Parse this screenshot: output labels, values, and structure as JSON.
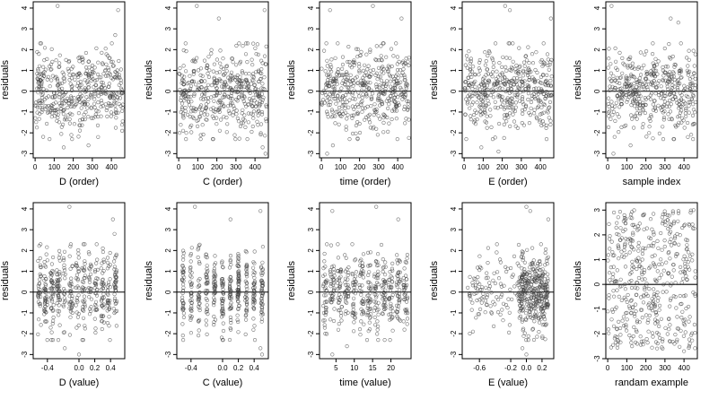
{
  "chart_data": [
    {
      "type": "scatter",
      "xlabel": "D (order)",
      "ylabel": "residuals",
      "xlim": [
        -10,
        470
      ],
      "ylim": [
        -3.2,
        4.3
      ],
      "xticks": [
        0,
        100,
        200,
        300,
        400
      ],
      "xtick_labels": [
        "0",
        "100",
        "200",
        "300",
        "400"
      ],
      "yticks": [
        -3,
        -2,
        -1,
        0,
        1,
        2,
        3,
        4
      ],
      "ytick_labels": [
        "-3",
        "-2",
        "-1",
        "0",
        "1",
        "2",
        "3",
        "4"
      ],
      "reference_line_y": 0,
      "x_distribution": "uniform",
      "x_range": [
        0,
        460
      ],
      "n_points": 450,
      "seed": 11,
      "highlights": [
        [
          118,
          4.1
        ],
        [
          435,
          3.9
        ],
        [
          420,
          2.7
        ],
        [
          150,
          -2.7
        ],
        [
          280,
          -2.6
        ],
        [
          190,
          -2.1
        ],
        [
          330,
          -2.2
        ]
      ]
    },
    {
      "type": "scatter",
      "xlabel": "C (order)",
      "ylabel": "residuals",
      "xlim": [
        -10,
        470
      ],
      "ylim": [
        -3.2,
        4.3
      ],
      "xticks": [
        0,
        100,
        200,
        300,
        400
      ],
      "xtick_labels": [
        "0",
        "100",
        "200",
        "300",
        "400"
      ],
      "yticks": [
        -3,
        -2,
        -1,
        0,
        1,
        2,
        3,
        4
      ],
      "ytick_labels": [
        "-3",
        "-2",
        "-1",
        "0",
        "1",
        "2",
        "3",
        "4"
      ],
      "reference_line_y": 0,
      "x_distribution": "uniform",
      "x_range": [
        0,
        460
      ],
      "n_points": 450,
      "seed": 23,
      "highlights": [
        [
          95,
          4.1
        ],
        [
          450,
          3.9
        ],
        [
          210,
          3.5
        ],
        [
          440,
          -2.7
        ],
        [
          455,
          -3.0
        ],
        [
          40,
          -2.0
        ]
      ]
    },
    {
      "type": "scatter",
      "xlabel": "time (order)",
      "ylabel": "residuals",
      "xlim": [
        -10,
        470
      ],
      "ylim": [
        -3.2,
        4.3
      ],
      "xticks": [
        0,
        100,
        200,
        300,
        400
      ],
      "xtick_labels": [
        "0",
        "100",
        "200",
        "300",
        "400"
      ],
      "yticks": [
        -3,
        -2,
        -1,
        0,
        1,
        2,
        3,
        4
      ],
      "ytick_labels": [
        "-3",
        "-2",
        "-1",
        "0",
        "1",
        "2",
        "3",
        "4"
      ],
      "reference_line_y": 0,
      "x_distribution": "uniform",
      "x_range": [
        0,
        460
      ],
      "n_points": 450,
      "seed": 37,
      "highlights": [
        [
          270,
          4.1
        ],
        [
          45,
          3.9
        ],
        [
          420,
          3.5
        ],
        [
          60,
          -2.6
        ],
        [
          30,
          -3.0
        ],
        [
          190,
          -2.3
        ]
      ]
    },
    {
      "type": "scatter",
      "xlabel": "E (order)",
      "ylabel": "residuals",
      "xlim": [
        -10,
        470
      ],
      "ylim": [
        -3.2,
        4.3
      ],
      "xticks": [
        0,
        100,
        200,
        300,
        400
      ],
      "xtick_labels": [
        "0",
        "100",
        "200",
        "300",
        "400"
      ],
      "yticks": [
        -3,
        -2,
        -1,
        0,
        1,
        2,
        3,
        4
      ],
      "ytick_labels": [
        "-3",
        "-2",
        "-1",
        "0",
        "1",
        "2",
        "3",
        "4"
      ],
      "reference_line_y": 0,
      "x_distribution": "uniform",
      "x_range": [
        0,
        460
      ],
      "n_points": 450,
      "seed": 41,
      "highlights": [
        [
          215,
          4.1
        ],
        [
          240,
          3.9
        ],
        [
          455,
          3.5
        ],
        [
          90,
          -2.7
        ],
        [
          180,
          -2.9
        ],
        [
          150,
          -2.3
        ]
      ]
    },
    {
      "type": "scatter",
      "xlabel": "sample index",
      "ylabel": "residuals",
      "xlim": [
        -10,
        470
      ],
      "ylim": [
        -3.2,
        4.3
      ],
      "xticks": [
        0,
        100,
        200,
        300,
        400
      ],
      "xtick_labels": [
        "0",
        "100",
        "200",
        "300",
        "400"
      ],
      "yticks": [
        -3,
        -2,
        -1,
        0,
        1,
        2,
        3,
        4
      ],
      "ytick_labels": [
        "-3",
        "-2",
        "-1",
        "0",
        "1",
        "2",
        "3",
        "4"
      ],
      "reference_line_y": 0,
      "x_distribution": "uniform",
      "x_range": [
        0,
        460
      ],
      "n_points": 450,
      "seed": 53,
      "highlights": [
        [
          20,
          4.1
        ],
        [
          330,
          3.5
        ],
        [
          370,
          3.3
        ],
        [
          120,
          -2.6
        ],
        [
          30,
          -3.0
        ],
        [
          420,
          -2.2
        ]
      ]
    },
    {
      "type": "scatter",
      "xlabel": "D (value)",
      "ylabel": "residuals",
      "xlim": [
        -0.58,
        0.58
      ],
      "ylim": [
        -3.2,
        4.3
      ],
      "xticks": [
        -0.4,
        0.0,
        0.2,
        0.4
      ],
      "xtick_labels": [
        "-0.4",
        "0.0",
        "0.2",
        "0.4"
      ],
      "yticks": [
        -3,
        -2,
        -1,
        0,
        1,
        2,
        3,
        4
      ],
      "ytick_labels": [
        "-3",
        "-2",
        "-1",
        "0",
        "1",
        "2",
        "3",
        "4"
      ],
      "reference_line_y": 0,
      "x_distribution": "columns",
      "x_levels": [
        -0.5,
        -0.42,
        -0.34,
        -0.26,
        -0.18,
        -0.1,
        -0.02,
        0.06,
        0.14,
        0.22,
        0.3,
        0.38,
        0.46
      ],
      "x_jitter": 0.02,
      "n_points": 450,
      "seed": 67,
      "highlights": [
        [
          -0.12,
          4.1
        ],
        [
          0.43,
          3.5
        ],
        [
          0.45,
          2.8
        ],
        [
          -0.18,
          -2.7
        ],
        [
          0.0,
          -3.0
        ]
      ]
    },
    {
      "type": "scatter",
      "xlabel": "C (value)",
      "ylabel": "residuals",
      "xlim": [
        -0.58,
        0.58
      ],
      "ylim": [
        -3.2,
        4.3
      ],
      "xticks": [
        -0.4,
        0.0,
        0.2,
        0.4
      ],
      "xtick_labels": [
        "-0.4",
        "0.0",
        "0.2",
        "0.4"
      ],
      "yticks": [
        -3,
        -2,
        -1,
        0,
        1,
        2,
        3,
        4
      ],
      "ytick_labels": [
        "-3",
        "-2",
        "-1",
        "0",
        "1",
        "2",
        "3",
        "4"
      ],
      "reference_line_y": 0,
      "x_distribution": "columns",
      "x_levels": [
        -0.5,
        -0.4,
        -0.3,
        -0.2,
        -0.1,
        0.0,
        0.1,
        0.2,
        0.3,
        0.4,
        0.5
      ],
      "x_jitter": 0.012,
      "n_points": 450,
      "seed": 71,
      "highlights": [
        [
          -0.35,
          4.1
        ],
        [
          0.48,
          3.9
        ],
        [
          0.1,
          3.5
        ],
        [
          0.48,
          -2.7
        ],
        [
          0.5,
          -3.0
        ]
      ]
    },
    {
      "type": "scatter",
      "xlabel": "time (value)",
      "ylabel": "residuals",
      "xlim": [
        0.5,
        25.5
      ],
      "ylim": [
        -3.2,
        4.3
      ],
      "xticks": [
        5,
        10,
        15,
        20
      ],
      "xtick_labels": [
        "5",
        "10",
        "15",
        "20"
      ],
      "yticks": [
        -3,
        -2,
        -1,
        0,
        1,
        2,
        3,
        4
      ],
      "ytick_labels": [
        "-3",
        "-2",
        "-1",
        "0",
        "1",
        "2",
        "3",
        "4"
      ],
      "reference_line_y": 0,
      "x_distribution": "columns",
      "x_levels": [
        2,
        4,
        6,
        8,
        10,
        12,
        14,
        16,
        18,
        20,
        22,
        24
      ],
      "x_jitter": 0.6,
      "n_points": 450,
      "seed": 83,
      "highlights": [
        [
          16,
          4.1
        ],
        [
          4,
          3.9
        ],
        [
          22,
          3.5
        ],
        [
          4,
          -3.0
        ],
        [
          8,
          -2.6
        ]
      ]
    },
    {
      "type": "scatter",
      "xlabel": "E (value)",
      "ylabel": "residuals",
      "xlim": [
        -0.82,
        0.35
      ],
      "ylim": [
        -3.2,
        4.3
      ],
      "xticks": [
        -0.6,
        -0.2,
        0.0,
        0.2
      ],
      "xtick_labels": [
        "-0.6",
        "-0.2",
        "0.0",
        "0.2"
      ],
      "yticks": [
        -3,
        -2,
        -1,
        0,
        1,
        2,
        3,
        4
      ],
      "ytick_labels": [
        "-3",
        "-2",
        "-1",
        "0",
        "1",
        "2",
        "3",
        "4"
      ],
      "reference_line_y": 0,
      "x_distribution": "skewed",
      "x_range": [
        -0.75,
        0.3
      ],
      "x_cluster": [
        -0.1,
        0.28
      ],
      "cluster_share": 0.8,
      "n_points": 450,
      "seed": 97,
      "highlights": [
        [
          0.0,
          4.1
        ],
        [
          0.05,
          3.9
        ],
        [
          0.28,
          3.5
        ],
        [
          -0.05,
          -2.7
        ],
        [
          0.0,
          -3.0
        ]
      ]
    },
    {
      "type": "scatter",
      "xlabel": "randam example",
      "ylabel": "residuals",
      "xlim": [
        -10,
        470
      ],
      "ylim": [
        -3.0,
        3.3
      ],
      "xticks": [
        0,
        100,
        200,
        300,
        400
      ],
      "xtick_labels": [
        "0",
        "100",
        "200",
        "300",
        "400"
      ],
      "yticks": [
        -3,
        -2,
        -1,
        0,
        1,
        2,
        3
      ],
      "ytick_labels": [
        "-3",
        "-2",
        "-1",
        "0",
        "1",
        "2",
        "3"
      ],
      "reference_line_y": 0,
      "x_distribution": "uniform",
      "x_range": [
        0,
        460
      ],
      "y_distribution": "uniform",
      "y_range": [
        -2.6,
        3.0
      ],
      "n_points": 450,
      "seed": 101,
      "highlights": [
        [
          450,
          3.0
        ],
        [
          120,
          2.7
        ],
        [
          400,
          -2.7
        ],
        [
          350,
          -2.4
        ]
      ]
    }
  ]
}
